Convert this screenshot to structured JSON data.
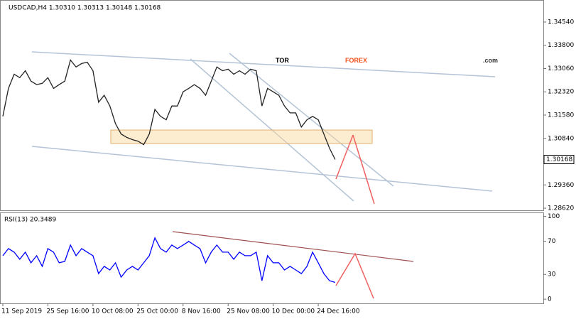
{
  "logo": {
    "tor": "TOR",
    "forex": "FOREX",
    "domain": ".com"
  },
  "chart_data": [
    {
      "type": "line",
      "title": "USDCAD,H4  1.30310  1.30313  1.30148  1.30168",
      "series": [
        {
          "name": "USDCAD",
          "color": "#222222",
          "values": [
            1.3154,
            1.3243,
            1.3288,
            1.3277,
            1.3299,
            1.3266,
            1.3255,
            1.3259,
            1.3277,
            1.3243,
            1.3255,
            1.3266,
            1.3333,
            1.3311,
            1.3322,
            1.3326,
            1.3299,
            1.3199,
            1.3221,
            1.3187,
            1.3131,
            1.3098,
            1.3087,
            1.308,
            1.3075,
            1.3064,
            1.3098,
            1.3176,
            1.3154,
            1.3143,
            1.3187,
            1.3187,
            1.3232,
            1.3243,
            1.3255,
            1.3243,
            1.3221,
            1.3266,
            1.3311,
            1.3299,
            1.3304,
            1.3288,
            1.3299,
            1.3288,
            1.3304,
            1.3299,
            1.3187,
            1.3243,
            1.3232,
            1.3221,
            1.3187,
            1.3165,
            1.3165,
            1.312,
            1.3143,
            1.3154,
            1.3143,
            1.3098,
            1.3053,
            1.30168
          ]
        }
      ],
      "last_price": {
        "value": 1.30168,
        "label": "1.30168"
      },
      "ylim": [
        1.2853,
        1.3524
      ],
      "yticks": [
        {
          "value": 1.3454,
          "label": "1.34540"
        },
        {
          "value": 1.338,
          "label": "1.33800"
        },
        {
          "value": 1.3306,
          "label": "1.33060"
        },
        {
          "value": 1.3232,
          "label": "1.32320"
        },
        {
          "value": 1.3158,
          "label": "1.31580"
        },
        {
          "value": 1.3084,
          "label": "1.30840"
        },
        {
          "value": 1.2936,
          "label": "1.29360"
        },
        {
          "value": 1.2862,
          "label": "1.28620"
        }
      ]
    },
    {
      "type": "line",
      "title": "RSI(13) 20.3489",
      "categories": [
        "11 Sep 2019",
        null,
        null,
        null,
        null,
        null,
        null,
        null,
        "25 Sep 16:00",
        null,
        null,
        null,
        null,
        null,
        null,
        null,
        "10 Oct 08:00",
        null,
        null,
        null,
        null,
        null,
        null,
        null,
        "25 Oct 00:00",
        null,
        null,
        null,
        null,
        null,
        null,
        null,
        "8 Nov 16:00",
        null,
        null,
        null,
        null,
        null,
        null,
        null,
        "25 Nov 08:00",
        null,
        null,
        null,
        null,
        null,
        null,
        null,
        "10 Dec 00:00",
        null,
        null,
        null,
        null,
        null,
        null,
        null,
        "24 Dec 16:00",
        null,
        null,
        null
      ],
      "series": [
        {
          "name": "RSI(13)",
          "color": "#0000ff",
          "values": [
            52.6,
            61.2,
            56.9,
            48.3,
            56.9,
            44,
            52.6,
            39.7,
            61.2,
            56.9,
            44,
            45.7,
            65.5,
            52.6,
            61.2,
            56.9,
            52.6,
            31,
            39.7,
            35.3,
            44,
            26.7,
            35.3,
            39.7,
            35.3,
            44,
            52.6,
            74.1,
            61.2,
            56.9,
            65.5,
            61.2,
            65.5,
            69.8,
            65.5,
            61.2,
            44,
            56.9,
            65.5,
            56.9,
            56.9,
            48.3,
            56.9,
            52.6,
            52.6,
            56.9,
            22.4,
            52.6,
            44,
            44,
            35.3,
            39.7,
            35.3,
            31,
            39.7,
            56.9,
            44,
            31,
            22.4,
            20.3
          ]
        }
      ],
      "ylim": [
        -5,
        104
      ],
      "yticks": [
        100,
        70,
        30,
        0
      ]
    }
  ]
}
